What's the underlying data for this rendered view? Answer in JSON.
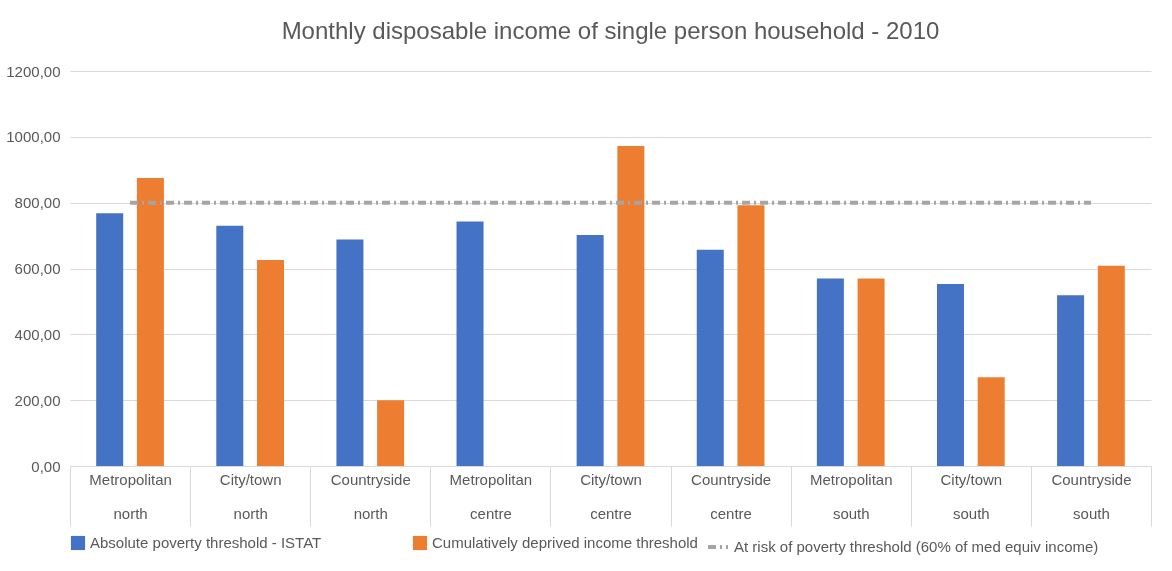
{
  "chart_data": {
    "type": "bar",
    "title": "Monthly disposable income of single person household - 2010",
    "categories": [
      "Metropolitan north",
      "City/town north",
      "Countryside north",
      "Metropolitan centre",
      "City/town centre",
      "Countryside centre",
      "Metropolitan south",
      "City/town south",
      "Countryside south"
    ],
    "series": [
      {
        "name": "Absolute poverty threshold - ISTAT",
        "color": "#4472c4",
        "values": [
          768,
          730,
          688,
          743,
          702,
          657,
          570,
          553,
          519
        ]
      },
      {
        "name": "Cumulatively deprived income threshold",
        "color": "#ed7d31",
        "values": [
          875,
          626,
          200,
          null,
          972,
          792,
          570,
          270,
          608
        ]
      },
      {
        "name": "At risk of poverty threshold (60% of med equiv income)",
        "color": "#a5a5a5",
        "type": "line",
        "line_style": "dashed",
        "values": [
          800,
          800,
          800,
          800,
          800,
          800,
          800,
          800,
          800
        ]
      }
    ],
    "ylim": [
      0,
      1200
    ],
    "yticks": [
      {
        "value": 0,
        "label": "0,00"
      },
      {
        "value": 200,
        "label": "200,00"
      },
      {
        "value": 400,
        "label": "400,00"
      },
      {
        "value": 600,
        "label": "600,00"
      },
      {
        "value": 800,
        "label": "800,00"
      },
      {
        "value": 1000,
        "label": "1000,00"
      },
      {
        "value": 1200,
        "label": "1200,00"
      }
    ],
    "grid": "y",
    "legend": "bottom"
  }
}
